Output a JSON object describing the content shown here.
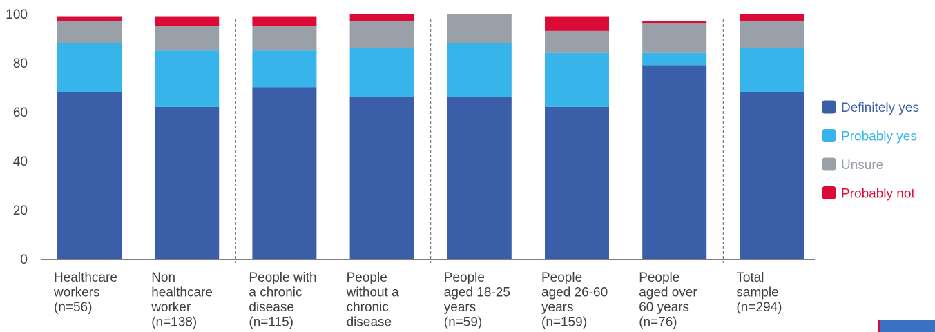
{
  "chart_data": {
    "type": "bar",
    "stacked": true,
    "ylim": [
      0,
      100
    ],
    "yticks": [
      0,
      20,
      40,
      60,
      80,
      100
    ],
    "categories": [
      [
        "Healthcare",
        "workers",
        "(n=56)"
      ],
      [
        "Non",
        "healthcare",
        "worker",
        "(n=138)"
      ],
      [
        "People with",
        "a chronic",
        "disease",
        "(n=115)"
      ],
      [
        "People",
        "without a",
        "chronic",
        "disease"
      ],
      [
        "People",
        "aged 18-25",
        "years",
        "(n=59)"
      ],
      [
        "People",
        "aged 26-60",
        "years",
        "(n=159)"
      ],
      [
        "People",
        "aged over",
        "60 years",
        "(n=76)"
      ],
      [
        "Total",
        "sample",
        "(n=294)"
      ]
    ],
    "series": [
      {
        "name": "Definitely yes",
        "color": "#3a5ea8",
        "values": [
          68,
          62,
          70,
          66,
          66,
          62,
          79,
          68
        ]
      },
      {
        "name": "Probably yes",
        "color": "#37b4ea",
        "values": [
          20,
          23,
          15,
          20,
          22,
          22,
          5,
          18
        ]
      },
      {
        "name": "Unsure",
        "color": "#9aa0a8",
        "values": [
          9,
          10,
          10,
          11,
          12,
          9,
          12,
          11
        ]
      },
      {
        "name": "Probably not",
        "color": "#dc0a37",
        "values": [
          2,
          4,
          4,
          3,
          0,
          6,
          1,
          3
        ]
      }
    ],
    "group_separators_after": [
      1,
      3,
      6
    ],
    "legend": "right",
    "grid": false
  }
}
